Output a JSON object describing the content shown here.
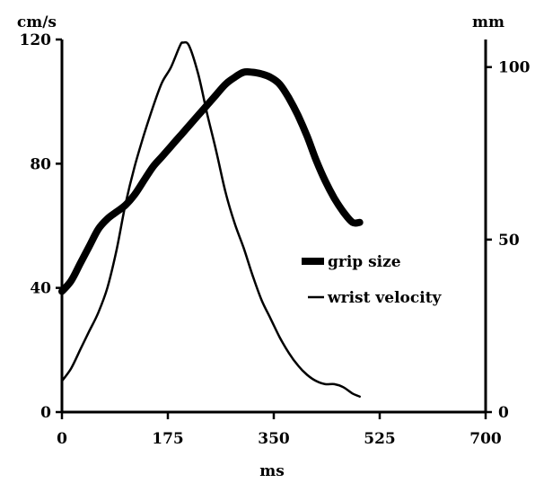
{
  "chart_data": {
    "type": "line",
    "xlabel": "ms",
    "left_unit": "cm/s",
    "right_unit": "mm",
    "x_ticks": [
      0,
      175,
      350,
      525,
      700
    ],
    "y_left_ticks": [
      0,
      40,
      80,
      120
    ],
    "y_right_ticks": [
      0,
      50,
      100
    ],
    "xlim": [
      0,
      700
    ],
    "ylim_left": [
      0,
      120
    ],
    "ylim_right": [
      0,
      108
    ],
    "grid": false,
    "legend_position": "right-center",
    "series": [
      {
        "name": "grip size",
        "axis": "right",
        "style": "thick",
        "x": [
          0,
          15,
          30,
          45,
          60,
          75,
          90,
          105,
          120,
          135,
          150,
          165,
          180,
          195,
          210,
          225,
          240,
          255,
          270,
          285,
          300,
          315,
          330,
          345,
          360,
          375,
          390,
          405,
          420,
          435,
          450,
          465,
          480,
          492
        ],
        "y": [
          35,
          38,
          43,
          48,
          53,
          56,
          58,
          60,
          63,
          67,
          71,
          74,
          77,
          80,
          83,
          86,
          89,
          92,
          95,
          97,
          98.5,
          98.5,
          98,
          97,
          95,
          91,
          86,
          80,
          73,
          67,
          62,
          58,
          55,
          55
        ]
      },
      {
        "name": "wrist velocity",
        "axis": "left",
        "style": "thin",
        "x": [
          0,
          15,
          30,
          45,
          60,
          75,
          90,
          105,
          120,
          135,
          150,
          165,
          180,
          195,
          200,
          210,
          225,
          240,
          255,
          270,
          285,
          300,
          315,
          330,
          345,
          360,
          375,
          390,
          405,
          420,
          435,
          450,
          465,
          480,
          492
        ],
        "y": [
          10,
          14,
          20,
          26,
          32,
          40,
          52,
          67,
          79,
          89,
          98,
          106,
          111,
          118,
          119,
          118,
          109,
          96,
          84,
          71,
          61,
          53,
          44,
          36,
          30,
          24,
          19,
          15,
          12,
          10,
          9,
          9,
          8,
          6,
          5
        ]
      }
    ]
  }
}
